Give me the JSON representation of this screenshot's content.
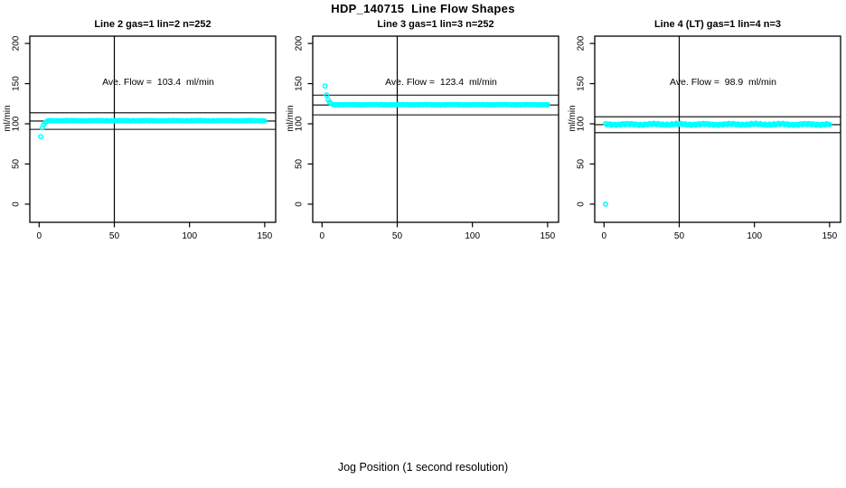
{
  "title": "HDP_140715  Line Flow Shapes",
  "xlabel": "Jog Position (1 second resolution)",
  "colors": {
    "marker": "#00FFFF",
    "axis": "#000000",
    "background": "#FFFFFF"
  },
  "chart_data": [
    {
      "type": "scatter",
      "title": "Line 2 gas=1 lin=2 n=252",
      "ylabel": "ml/min",
      "annotation": "Ave. Flow =  103.4  ml/min",
      "ave_flow_ml_min": 103.4,
      "n_points": 252,
      "xlim": [
        -6.2,
        157.3
      ],
      "ylim": [
        -22.6,
        209.1
      ],
      "x_ticks": [
        0,
        50,
        100,
        150
      ],
      "y_ticks": [
        0,
        50,
        100,
        150,
        200
      ],
      "vline_x": 50,
      "hlines": [
        113.7,
        103.4,
        93.1
      ],
      "marker_color": "#00FFFF",
      "start_points": [
        [
          1,
          84
        ],
        [
          2,
          95
        ],
        [
          3,
          99
        ],
        [
          4,
          101.5
        ],
        [
          5,
          102.8
        ]
      ],
      "steady_state": {
        "x_from": 6,
        "x_to": 150,
        "value": 103.9,
        "jitter": 0.35
      }
    },
    {
      "type": "scatter",
      "title": "Line 3 gas=1 lin=3 n=252",
      "ylabel": "ml/min",
      "annotation": "Ave. Flow =  123.4  ml/min",
      "ave_flow_ml_min": 123.4,
      "n_points": 252,
      "xlim": [
        -6.2,
        157.3
      ],
      "ylim": [
        -22.6,
        209.1
      ],
      "x_ticks": [
        0,
        50,
        100,
        150
      ],
      "y_ticks": [
        0,
        50,
        100,
        150,
        200
      ],
      "vline_x": 50,
      "hlines": [
        135.7,
        123.4,
        111.1
      ],
      "marker_color": "#00FFFF",
      "start_points": [
        [
          2,
          147
        ],
        [
          3,
          136
        ],
        [
          4,
          130
        ],
        [
          5,
          127
        ],
        [
          6,
          125.2
        ],
        [
          7,
          124.2
        ]
      ],
      "steady_state": {
        "x_from": 8,
        "x_to": 150,
        "value": 123.8,
        "jitter": 0.35
      }
    },
    {
      "type": "scatter",
      "title": "Line 4 (LT) gas=1 lin=4 n=3",
      "ylabel": "ml/min",
      "annotation": "Ave. Flow =  98.9  ml/min",
      "ave_flow_ml_min": 98.9,
      "n_points": 3,
      "xlim": [
        -6.2,
        157.3
      ],
      "ylim": [
        -22.6,
        209.1
      ],
      "x_ticks": [
        0,
        50,
        100,
        150
      ],
      "y_ticks": [
        0,
        50,
        100,
        150,
        200
      ],
      "vline_x": 50,
      "hlines": [
        108.8,
        98.9,
        89.0
      ],
      "marker_color": "#00FFFF",
      "start_points": [
        [
          1,
          0
        ]
      ],
      "steady_state": {
        "x_from": 1,
        "x_to": 150,
        "value": 99.3,
        "jitter": 1.4
      }
    }
  ],
  "layout_note": ""
}
